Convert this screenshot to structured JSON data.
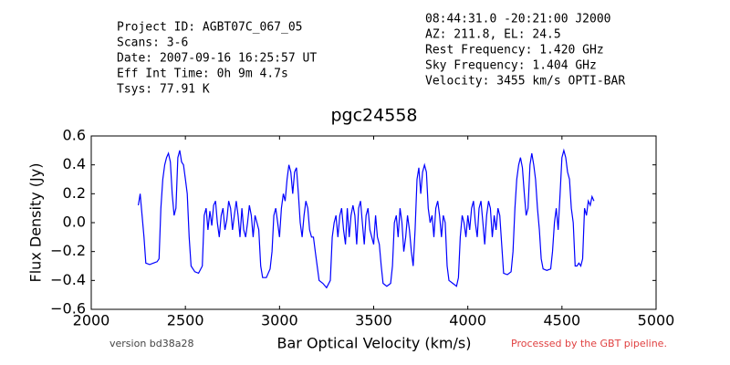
{
  "header": {
    "left": [
      "Project ID: AGBT07C_067_05",
      "Scans: 3-6",
      "Date: 2007-09-16 16:25:57 UT",
      "Eff Int Time: 0h 9m 4.7s",
      "Tsys: 77.91 K"
    ],
    "right": [
      "08:44:31.0 -20:21:00 J2000",
      "AZ: 211.8, EL: 24.5",
      "Rest Frequency:   1.420 GHz",
      "Sky Frequency:    1.404 GHz",
      "Velocity: 3455 km/s OPTI-BAR"
    ]
  },
  "footer": {
    "version": "version bd38a28",
    "pipeline": "Processed by the GBT pipeline."
  },
  "chart_data": {
    "type": "line",
    "title": "pgc24558",
    "x_label": "Bar Optical Velocity (km/s)",
    "y_label": "Flux Density (Jy)",
    "xlim": [
      2000,
      5000
    ],
    "xticks": [
      2000,
      2500,
      3000,
      3500,
      4000,
      4500,
      5000
    ],
    "ylim": [
      -0.6,
      0.6
    ],
    "yticks": [
      {
        "value": -0.6,
        "label": "−0.6"
      },
      {
        "value": -0.4,
        "label": "−0.4"
      },
      {
        "value": -0.2,
        "label": "−0.2"
      },
      {
        "value": 0,
        "label": "0.0"
      },
      0.2,
      0.4,
      0.6
    ],
    "color": "#0000ff",
    "x": [
      2250,
      2260,
      2270,
      2280,
      2290,
      2310,
      2330,
      2350,
      2360,
      2370,
      2380,
      2390,
      2400,
      2410,
      2420,
      2430,
      2440,
      2450,
      2460,
      2470,
      2480,
      2490,
      2500,
      2510,
      2520,
      2530,
      2550,
      2570,
      2590,
      2600,
      2610,
      2620,
      2630,
      2640,
      2650,
      2660,
      2670,
      2680,
      2690,
      2700,
      2710,
      2720,
      2730,
      2740,
      2750,
      2760,
      2770,
      2780,
      2790,
      2800,
      2810,
      2820,
      2830,
      2840,
      2850,
      2860,
      2870,
      2880,
      2890,
      2900,
      2910,
      2930,
      2950,
      2960,
      2970,
      2980,
      2990,
      3000,
      3010,
      3020,
      3030,
      3040,
      3050,
      3060,
      3070,
      3080,
      3090,
      3100,
      3110,
      3120,
      3130,
      3140,
      3150,
      3160,
      3170,
      3180,
      3190,
      3200,
      3210,
      3230,
      3250,
      3270,
      3280,
      3290,
      3300,
      3310,
      3320,
      3330,
      3340,
      3350,
      3360,
      3370,
      3380,
      3390,
      3400,
      3410,
      3420,
      3430,
      3440,
      3450,
      3460,
      3470,
      3480,
      3490,
      3500,
      3510,
      3520,
      3530,
      3540,
      3550,
      3570,
      3590,
      3600,
      3610,
      3620,
      3630,
      3640,
      3650,
      3660,
      3670,
      3680,
      3690,
      3700,
      3710,
      3720,
      3730,
      3740,
      3750,
      3760,
      3770,
      3780,
      3790,
      3800,
      3810,
      3820,
      3830,
      3840,
      3850,
      3860,
      3870,
      3880,
      3890,
      3900,
      3920,
      3940,
      3950,
      3960,
      3970,
      3980,
      3990,
      4000,
      4010,
      4020,
      4030,
      4040,
      4050,
      4060,
      4070,
      4080,
      4090,
      4100,
      4110,
      4120,
      4130,
      4140,
      4150,
      4160,
      4170,
      4180,
      4190,
      4210,
      4230,
      4240,
      4250,
      4260,
      4270,
      4280,
      4290,
      4300,
      4310,
      4320,
      4330,
      4340,
      4350,
      4360,
      4370,
      4380,
      4390,
      4400,
      4420,
      4440,
      4450,
      4460,
      4470,
      4480,
      4490,
      4500,
      4510,
      4520,
      4530,
      4540,
      4550,
      4560,
      4570,
      4580,
      4590,
      4600,
      4610,
      4620,
      4630,
      4640,
      4650,
      4660,
      4670
    ],
    "values": [
      0.12,
      0.2,
      0.05,
      -0.1,
      -0.28,
      -0.29,
      -0.28,
      -0.27,
      -0.25,
      0.1,
      0.3,
      0.4,
      0.45,
      0.48,
      0.42,
      0.2,
      0.05,
      0.1,
      0.45,
      0.5,
      0.42,
      0.4,
      0.3,
      0.2,
      -0.1,
      -0.3,
      -0.34,
      -0.35,
      -0.3,
      0.05,
      0.1,
      -0.05,
      0.08,
      -0.02,
      0.12,
      0.15,
      0.0,
      -0.1,
      0.05,
      0.1,
      -0.05,
      0.02,
      0.15,
      0.1,
      -0.05,
      0.05,
      0.15,
      0.05,
      -0.1,
      0.1,
      -0.05,
      -0.1,
      0.0,
      0.12,
      0.05,
      -0.1,
      0.05,
      0.0,
      -0.05,
      -0.3,
      -0.38,
      -0.38,
      -0.32,
      -0.2,
      0.05,
      0.1,
      0.0,
      -0.1,
      0.1,
      0.2,
      0.15,
      0.3,
      0.4,
      0.35,
      0.2,
      0.35,
      0.38,
      0.2,
      0.0,
      -0.1,
      0.05,
      0.15,
      0.1,
      -0.05,
      -0.1,
      -0.1,
      -0.2,
      -0.3,
      -0.4,
      -0.42,
      -0.45,
      -0.4,
      -0.1,
      0.0,
      0.05,
      -0.1,
      0.05,
      0.1,
      -0.05,
      -0.15,
      0.1,
      -0.1,
      0.05,
      0.12,
      0.05,
      -0.15,
      0.1,
      0.15,
      0.0,
      -0.15,
      0.05,
      0.1,
      -0.05,
      -0.1,
      -0.15,
      0.05,
      -0.1,
      -0.15,
      -0.3,
      -0.42,
      -0.44,
      -0.42,
      -0.3,
      0.0,
      0.05,
      -0.1,
      0.1,
      0.0,
      -0.2,
      -0.1,
      0.05,
      -0.05,
      -0.2,
      -0.3,
      -0.05,
      0.3,
      0.38,
      0.2,
      0.35,
      0.4,
      0.35,
      0.1,
      0.0,
      0.05,
      -0.1,
      0.1,
      0.15,
      0.05,
      -0.1,
      0.05,
      0.0,
      -0.3,
      -0.4,
      -0.42,
      -0.44,
      -0.38,
      -0.1,
      0.05,
      0.0,
      -0.1,
      0.05,
      -0.05,
      0.1,
      0.15,
      0.0,
      -0.1,
      0.1,
      0.15,
      0.0,
      -0.15,
      0.05,
      0.15,
      0.1,
      -0.1,
      0.05,
      -0.05,
      0.1,
      0.05,
      -0.15,
      -0.35,
      -0.36,
      -0.34,
      -0.2,
      0.1,
      0.3,
      0.4,
      0.45,
      0.38,
      0.2,
      0.05,
      0.1,
      0.4,
      0.48,
      0.4,
      0.3,
      0.1,
      -0.05,
      -0.25,
      -0.32,
      -0.33,
      -0.32,
      -0.2,
      0.0,
      0.1,
      -0.05,
      0.2,
      0.45,
      0.5,
      0.45,
      0.35,
      0.3,
      0.1,
      0.0,
      -0.3,
      -0.3,
      -0.28,
      -0.3,
      -0.25,
      0.1,
      0.05,
      0.15,
      0.12,
      0.18,
      0.15
    ]
  }
}
